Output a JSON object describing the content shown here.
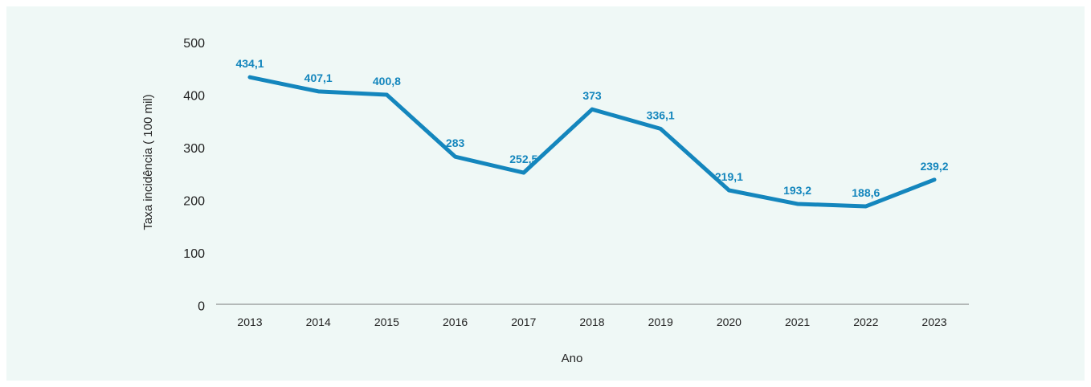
{
  "chart_data": {
    "type": "line",
    "title": "",
    "xlabel": "Ano",
    "ylabel": "Taxa incidência ( 100 mil)",
    "ylim": [
      0,
      500
    ],
    "yticks": [
      "0",
      "100",
      "200",
      "300",
      "400",
      "500"
    ],
    "grid": false,
    "categories": [
      "2013",
      "2014",
      "2015",
      "2016",
      "2017",
      "2018",
      "2019",
      "2020",
      "2021",
      "2022",
      "2023"
    ],
    "series": [
      {
        "values": [
          434.1,
          407.1,
          400.8,
          283,
          252.5,
          373,
          336.1,
          219.1,
          193.2,
          188.6,
          239.2
        ],
        "labels": [
          "434,1",
          "407,1",
          "400,8",
          "283",
          "252,5",
          "373",
          "336,1",
          "219,1",
          "193,2",
          "188,6",
          "239,2"
        ],
        "color": "#1486bd"
      }
    ],
    "background_color": "#eff8f6",
    "axis_color": "#7a7a7a"
  }
}
